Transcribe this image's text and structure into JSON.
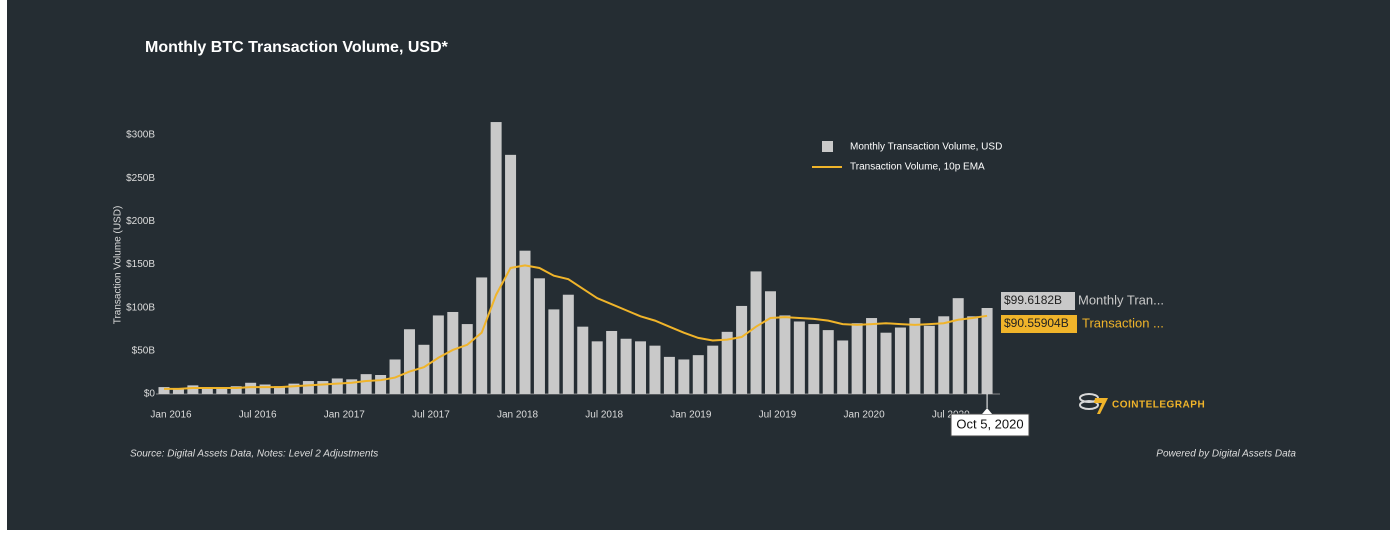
{
  "chart_data": {
    "type": "bar_line",
    "title": "Monthly BTC Transaction Volume, USD*",
    "y_label": "Transaction Volume (USD)",
    "categories": [
      "Jan 2016",
      null,
      null,
      null,
      null,
      null,
      "Jul 2016",
      null,
      null,
      null,
      null,
      null,
      "Jan 2017",
      null,
      null,
      null,
      null,
      null,
      "Jul 2017",
      null,
      null,
      null,
      null,
      null,
      "Jan 2018",
      null,
      null,
      null,
      null,
      null,
      "Jul 2018",
      null,
      null,
      null,
      null,
      null,
      "Jan 2019",
      null,
      null,
      null,
      null,
      null,
      "Jul 2019",
      null,
      null,
      null,
      null,
      null,
      "Jan 2020",
      null,
      null,
      null,
      null,
      null,
      "Jul 2020",
      null,
      null,
      null
    ],
    "series": [
      {
        "name": "Monthly Transaction Volume, USD",
        "kind": "bar",
        "color": "#c9c9c9",
        "values": [
          8,
          6,
          10,
          8,
          8,
          9,
          13,
          11,
          9,
          12,
          15,
          15,
          18,
          17,
          23,
          22,
          40,
          75,
          57,
          91,
          95,
          81,
          135,
          315,
          277,
          166,
          134,
          98,
          115,
          78,
          61,
          73,
          64,
          61,
          56,
          43,
          40,
          45,
          56,
          72,
          102,
          142,
          119,
          91,
          84,
          81,
          74,
          62,
          82,
          88,
          71,
          77,
          88,
          79,
          90,
          111,
          90,
          99.6182
        ]
      },
      {
        "name": "Transaction Volume, 10p EMA",
        "kind": "line",
        "color": "#f0b42a",
        "values": [
          6,
          6,
          7,
          7,
          7,
          7,
          8,
          8,
          8,
          9,
          10,
          11,
          12,
          13,
          15,
          16,
          19,
          26,
          31,
          42,
          51,
          57,
          71,
          115,
          146,
          149,
          146,
          137,
          133,
          122,
          111,
          104,
          97,
          90,
          85,
          78,
          71,
          65,
          62,
          63,
          66,
          78,
          88,
          89,
          88,
          87,
          85,
          81,
          80,
          81,
          82,
          81,
          80,
          81,
          82,
          86,
          88,
          90.55904
        ]
      }
    ],
    "ylim": [
      0,
      300
    ],
    "yticks": [
      {
        "value": 0,
        "label": "$0"
      },
      {
        "value": 50,
        "label": "$50B"
      },
      {
        "value": 100,
        "label": "$100B"
      },
      {
        "value": 150,
        "label": "$150B"
      },
      {
        "value": 200,
        "label": "$200B"
      },
      {
        "value": 250,
        "label": "$250B"
      },
      {
        "value": 300,
        "label": "$300B"
      }
    ],
    "hover": {
      "date": "Oct 5, 2020",
      "labels": [
        {
          "value": "$99.6182B",
          "name": "Monthly Tran..."
        },
        {
          "value": "$90.55904B",
          "name": "Transaction ..."
        }
      ]
    },
    "source": "Source: Digital Assets Data, Notes: Level 2 Adjustments",
    "powered_by": "Powered by Digital Assets Data",
    "brand": "COINTELEGRAPH"
  }
}
